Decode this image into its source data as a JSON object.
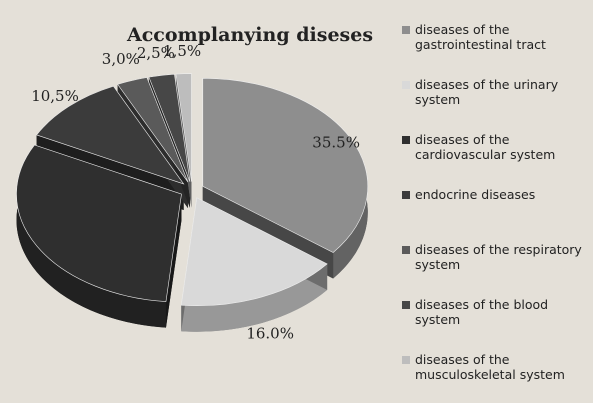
{
  "chart_data": {
    "type": "pie",
    "title": "Accomplanying diseses",
    "categories": [
      "diseases of the gastrointestinal tract",
      "diseases of the urinary system",
      "diseases of the cardiovascular system",
      "endocrine diseases",
      "diseases of the respiratory system",
      "diseases of the blood system",
      "diseases of the musculoskeletal system"
    ],
    "values": [
      35.5,
      16.0,
      31,
      10.5,
      3.0,
      2.5,
      1.5
    ],
    "value_labels": [
      "35.5%",
      "16.0%",
      null,
      "10,5%",
      "3,0%",
      "2,5%",
      "1,5%"
    ],
    "colors": [
      "#8e8e8e",
      "#d9d9d9",
      "#2f2f2f",
      "#3b3b3b",
      "#5a5a5a",
      "#474747",
      "#bdbdbd"
    ],
    "legend": "right"
  }
}
